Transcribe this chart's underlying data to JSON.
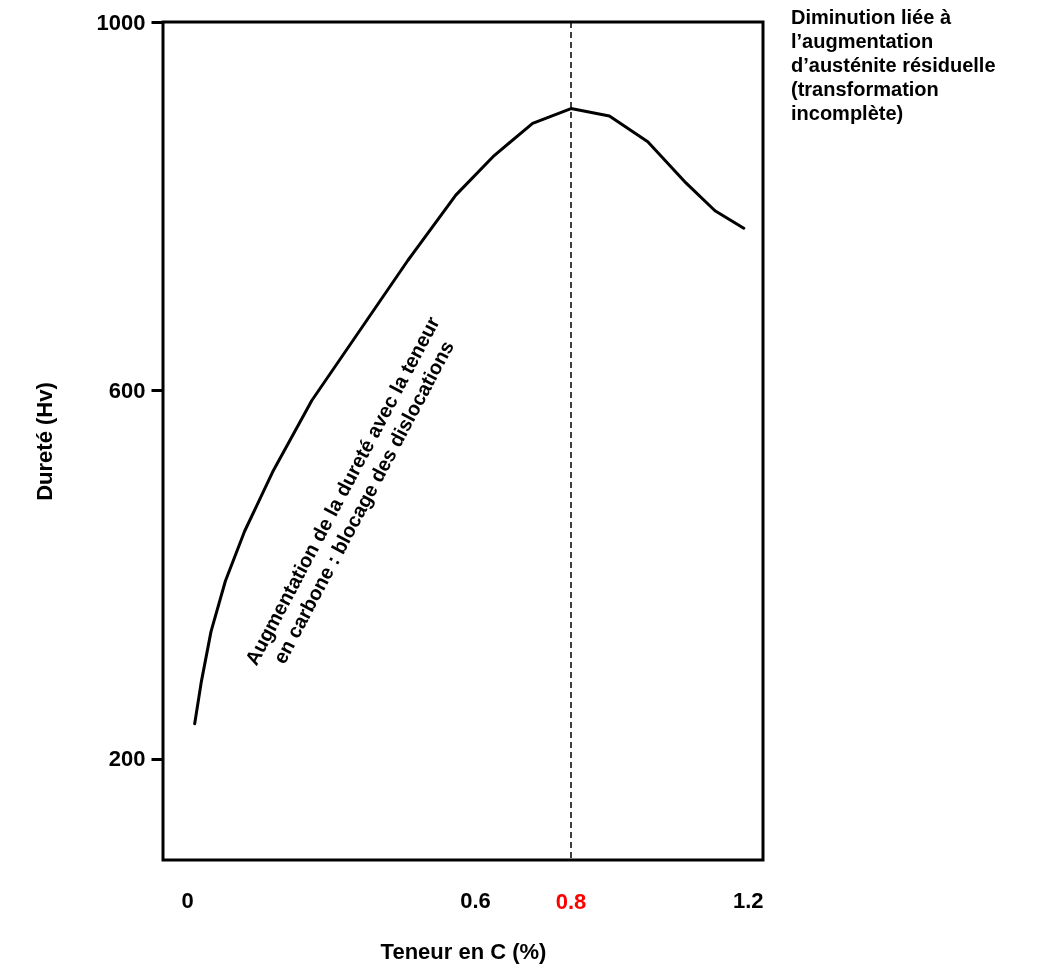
{
  "chart_data": {
    "type": "line",
    "xlabel": "Teneur en C (%)",
    "ylabel": "Dureté (Hv)",
    "x": [
      0.016,
      0.03,
      0.05,
      0.08,
      0.12,
      0.18,
      0.26,
      0.36,
      0.46,
      0.56,
      0.64,
      0.72,
      0.8,
      0.88,
      0.96,
      1.04,
      1.1,
      1.16
    ],
    "values": [
      238,
      284,
      338,
      393,
      447,
      513,
      589,
      665,
      741,
      812,
      855,
      890,
      906,
      898,
      870,
      825,
      795,
      776
    ],
    "color": "#000000",
    "xlim": [
      -0.05,
      1.2
    ],
    "ylim": [
      90,
      1000
    ],
    "xticks": [
      0,
      0.6,
      1.2
    ],
    "yticks": [
      200,
      600,
      1000
    ],
    "grid": false,
    "ref_lines": [
      {
        "axis": "x",
        "value": 0.8,
        "label": "0.8",
        "line_style": "dashed"
      }
    ],
    "annotations": [
      "Augmentation de la dureté avec la teneur\nen carbone : blocage des dislocations",
      "Diminution liée à\nl’augmentation\nd’austénite résiduelle\n(transformation\nincomplète)"
    ]
  }
}
